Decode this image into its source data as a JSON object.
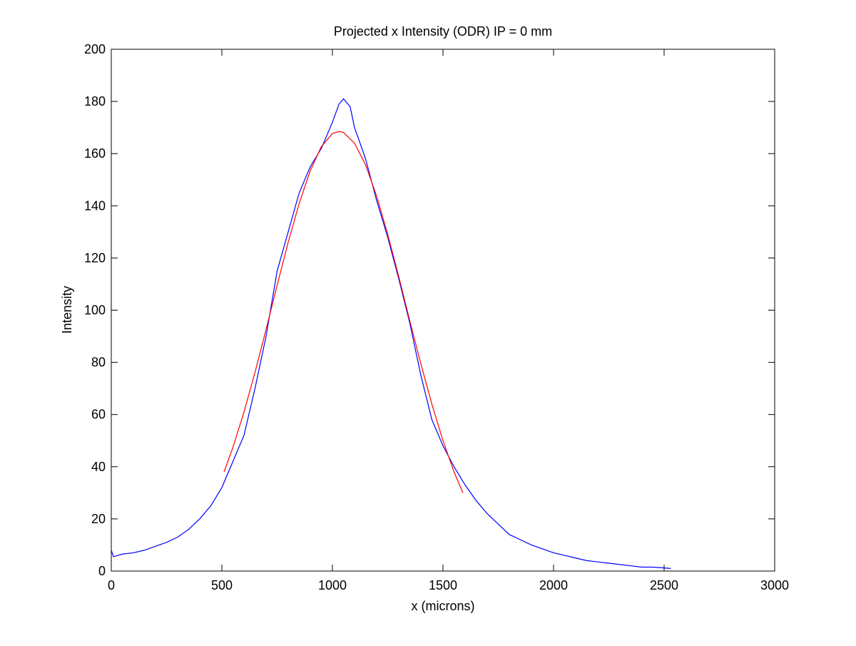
{
  "chart_data": {
    "type": "line",
    "title": "Projected x Intensity (ODR) IP = 0 mm",
    "x_label": "x (microns)",
    "y_label": "Intensity",
    "xlim": [
      0,
      3000
    ],
    "xticks": [
      0,
      500,
      1000,
      1500,
      2000,
      2500,
      3000
    ],
    "ylim": [
      0,
      200
    ],
    "yticks": [
      0,
      20,
      40,
      60,
      80,
      100,
      120,
      140,
      160,
      180,
      200
    ],
    "series": [
      {
        "color": "#0000ff",
        "x": [
          0,
          10,
          50,
          100,
          150,
          200,
          250,
          300,
          350,
          400,
          450,
          500,
          550,
          600,
          650,
          700,
          750,
          800,
          850,
          900,
          950,
          1000,
          1030,
          1050,
          1080,
          1100,
          1150,
          1200,
          1250,
          1300,
          1350,
          1400,
          1450,
          1500,
          1550,
          1600,
          1650,
          1700,
          1750,
          1800,
          1850,
          1900,
          1950,
          2000,
          2050,
          2100,
          2150,
          2200,
          2250,
          2300,
          2350,
          2400,
          2450,
          2500,
          2530
        ],
        "values": [
          8,
          5.5,
          6.5,
          7,
          8,
          9.5,
          11,
          13,
          16,
          20,
          25,
          32,
          42,
          52,
          70,
          90,
          115,
          130,
          145,
          155,
          162,
          172,
          179,
          181,
          178,
          170,
          158,
          142,
          128,
          112,
          95,
          75,
          58,
          48,
          40,
          33,
          27,
          22,
          18,
          14,
          12,
          10,
          8.5,
          7,
          6,
          5,
          4,
          3.5,
          3,
          2.5,
          2,
          1.5,
          1.5,
          1.2,
          1
        ]
      },
      {
        "color": "#ff0000",
        "x": [
          510,
          550,
          600,
          650,
          700,
          750,
          800,
          850,
          900,
          950,
          1000,
          1030,
          1050,
          1100,
          1150,
          1200,
          1250,
          1300,
          1350,
          1400,
          1450,
          1500,
          1550,
          1590
        ],
        "values": [
          38,
          47.4,
          60.9,
          76.2,
          92.6,
          109.5,
          126,
          141,
          153.5,
          162.7,
          167.7,
          168.5,
          168.1,
          164,
          155.7,
          143.7,
          129.1,
          112.9,
          95.9,
          79.4,
          63.9,
          50,
          38,
          30
        ]
      }
    ]
  }
}
